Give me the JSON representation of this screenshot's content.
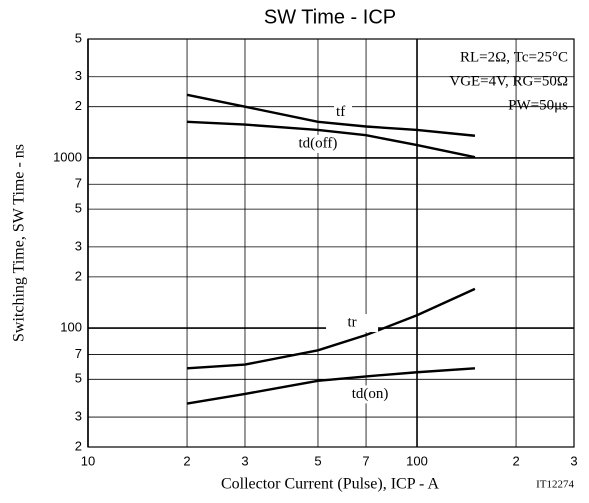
{
  "chart_data": {
    "type": "line",
    "title": "SW Time - ICP",
    "annotations": [
      "RL=2Ω, Tc=25°C",
      "VGE=4V, RG=50Ω",
      "PW=50μs"
    ],
    "x_label": "Collector Current (Pulse), ICP - A",
    "y_label": "Switching Time, SW Time - ns",
    "figure_code": "IT12274",
    "x": [
      20,
      30,
      50,
      70,
      100,
      150
    ],
    "series": [
      {
        "name": "tf",
        "color": "#000000",
        "values": [
          2350,
          2000,
          1630,
          1530,
          1460,
          1350
        ]
      },
      {
        "name": "td(off)",
        "color": "#000000",
        "values": [
          1630,
          1570,
          1460,
          1360,
          1190,
          1010
        ]
      },
      {
        "name": "tr",
        "color": "#000000",
        "values": [
          58,
          61,
          74,
          91,
          119,
          170
        ]
      },
      {
        "name": "td(on)",
        "color": "#000000",
        "values": [
          36,
          41,
          49,
          52,
          55,
          58
        ]
      }
    ],
    "xscale": "log",
    "yscale": "log",
    "xlim": [
      10,
      300
    ],
    "ylim": [
      20,
      5000
    ],
    "xticks": [
      10,
      {
        "value": 20,
        "label": "2"
      },
      {
        "value": 30,
        "label": "3"
      },
      {
        "value": 50,
        "label": "5"
      },
      {
        "value": 70,
        "label": "7"
      },
      100,
      {
        "value": 200,
        "label": "2"
      },
      {
        "value": 300,
        "label": "3"
      }
    ],
    "yticks": [
      {
        "value": 20,
        "label": "2"
      },
      {
        "value": 30,
        "label": "3"
      },
      {
        "value": 50,
        "label": "5"
      },
      {
        "value": 70,
        "label": "7"
      },
      100,
      {
        "value": 200,
        "label": "2"
      },
      {
        "value": 300,
        "label": "3"
      },
      {
        "value": 500,
        "label": "5"
      },
      {
        "value": 700,
        "label": "7"
      },
      1000,
      {
        "value": 2000,
        "label": "2"
      },
      {
        "value": 3000,
        "label": "3"
      },
      {
        "value": 5000,
        "label": "5"
      }
    ],
    "grid": true
  }
}
